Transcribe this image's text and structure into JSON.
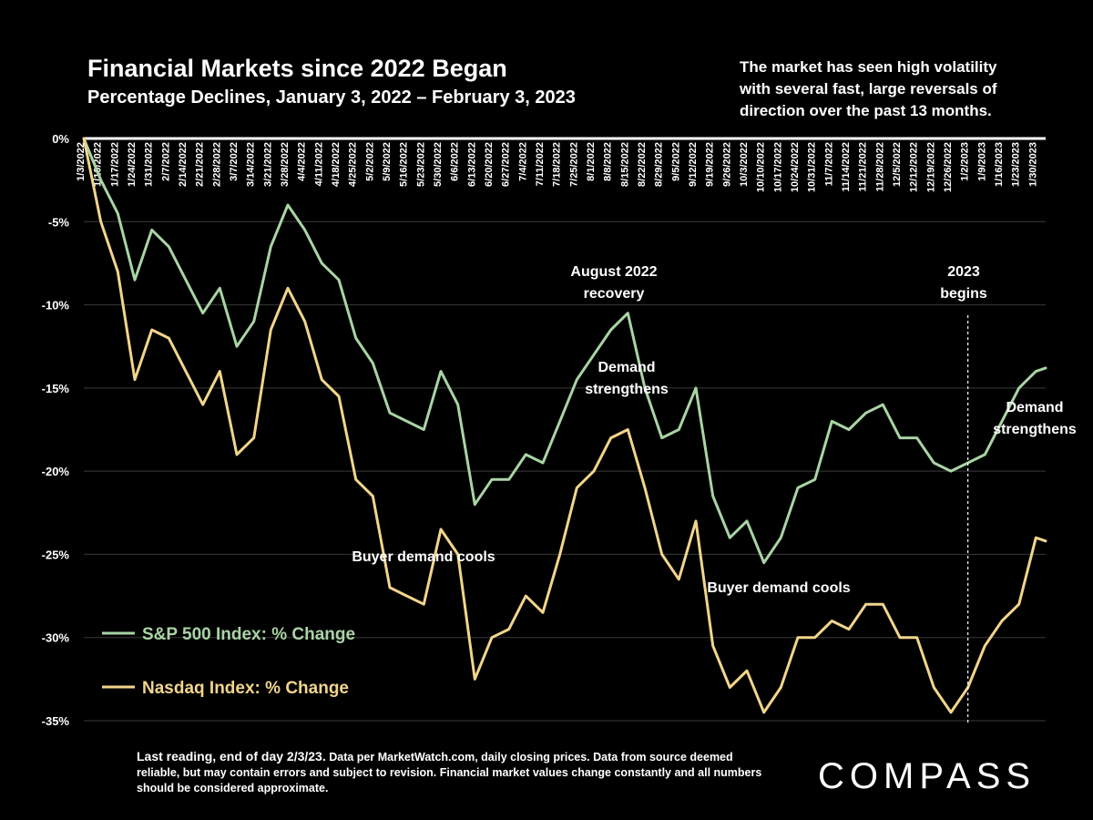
{
  "header": {
    "title": "Financial Markets since 2022 Began",
    "subtitle": "Percentage Declines, January 3, 2022 – February 3, 2023",
    "note_lines": [
      "The market has seen high volatility",
      "with several fast, large reversals of",
      "direction over the past 13 months."
    ]
  },
  "footer": {
    "lead": "Last reading, end of day 2/3/23.",
    "text": "Data per MarketWatch.com, daily closing prices. Data from source deemed reliable, but may contain errors and subject to revision. Financial market values change constantly and all numbers should be considered approximate.",
    "logo": "COMPASS"
  },
  "colors": {
    "background": "#000000",
    "sp500": "#a9d4a4",
    "nasdaq": "#f1d58a",
    "grid": "#3a3a3a",
    "text": "#ffffff"
  },
  "chart_data": {
    "type": "line",
    "ylim": [
      -35,
      0
    ],
    "yticks": [
      0,
      -5,
      -10,
      -15,
      -20,
      -25,
      -30,
      -35
    ],
    "ytick_labels": [
      "0%",
      "-5%",
      "-10%",
      "-15%",
      "-20%",
      "-25%",
      "-30%",
      "-35%"
    ],
    "xlim": [
      "2022-01-03",
      "2023-02-03"
    ],
    "x_tick_labels": [
      "1/3/2022",
      "1/10/2022",
      "1/17/2022",
      "1/24/2022",
      "1/31/2022",
      "2/7/2022",
      "2/14/2022",
      "2/21/2022",
      "2/28/2022",
      "3/7/2022",
      "3/14/2022",
      "3/21/2022",
      "3/28/2022",
      "4/4/2022",
      "4/11/2022",
      "4/18/2022",
      "4/25/2022",
      "5/2/2022",
      "5/9/2022",
      "5/16/2022",
      "5/23/2022",
      "5/30/2022",
      "6/6/2022",
      "6/13/2022",
      "6/20/2022",
      "6/27/2022",
      "7/4/2022",
      "7/11/2022",
      "7/18/2022",
      "7/25/2022",
      "8/1/2022",
      "8/8/2022",
      "8/15/2022",
      "8/22/2022",
      "8/29/2022",
      "9/5/2022",
      "9/12/2022",
      "9/19/2022",
      "9/26/2022",
      "10/3/2022",
      "10/10/2022",
      "10/17/2022",
      "10/24/2022",
      "10/31/2022",
      "11/7/2022",
      "11/14/2022",
      "11/21/2022",
      "11/28/2022",
      "12/5/2022",
      "12/12/2022",
      "12/19/2022",
      "12/26/2022",
      "1/2/2023",
      "1/9/2023",
      "1/16/2023",
      "1/23/2023",
      "1/30/2023"
    ],
    "grid": true,
    "legend_position": "bottom-left",
    "series": [
      {
        "name": "S&P 500 Index: % Change",
        "x": [
          "2022-01-03",
          "2022-01-10",
          "2022-01-17",
          "2022-01-24",
          "2022-01-31",
          "2022-02-07",
          "2022-02-14",
          "2022-02-21",
          "2022-02-28",
          "2022-03-07",
          "2022-03-14",
          "2022-03-21",
          "2022-03-28",
          "2022-04-04",
          "2022-04-11",
          "2022-04-18",
          "2022-04-25",
          "2022-05-02",
          "2022-05-09",
          "2022-05-16",
          "2022-05-23",
          "2022-05-30",
          "2022-06-06",
          "2022-06-13",
          "2022-06-20",
          "2022-06-27",
          "2022-07-04",
          "2022-07-11",
          "2022-07-18",
          "2022-07-25",
          "2022-08-01",
          "2022-08-08",
          "2022-08-15",
          "2022-08-22",
          "2022-08-29",
          "2022-09-05",
          "2022-09-12",
          "2022-09-19",
          "2022-09-26",
          "2022-10-03",
          "2022-10-10",
          "2022-10-17",
          "2022-10-24",
          "2022-10-31",
          "2022-11-07",
          "2022-11-14",
          "2022-11-21",
          "2022-11-28",
          "2022-12-05",
          "2022-12-12",
          "2022-12-19",
          "2022-12-26",
          "2023-01-02",
          "2023-01-09",
          "2023-01-16",
          "2023-01-23",
          "2023-01-30",
          "2023-02-03"
        ],
        "values": [
          0,
          -2.5,
          -4.5,
          -8.5,
          -5.5,
          -6.5,
          -8.5,
          -10.5,
          -9,
          -12.5,
          -11,
          -6.5,
          -4,
          -5.5,
          -7.5,
          -8.5,
          -12,
          -13.5,
          -16.5,
          -17,
          -17.5,
          -14,
          -16,
          -22,
          -20.5,
          -20.5,
          -19,
          -19.5,
          -17,
          -14.5,
          -13,
          -11.5,
          -10.5,
          -15,
          -18,
          -17.5,
          -15,
          -21.5,
          -24,
          -23,
          -25.5,
          -24,
          -21,
          -20.5,
          -17,
          -17.5,
          -16.5,
          -16,
          -18,
          -18,
          -19.5,
          -20,
          -19.5,
          -19,
          -17,
          -15,
          -14,
          -13.8
        ]
      },
      {
        "name": "Nasdaq Index: % Change",
        "x": [
          "2022-01-03",
          "2022-01-10",
          "2022-01-17",
          "2022-01-24",
          "2022-01-31",
          "2022-02-07",
          "2022-02-14",
          "2022-02-21",
          "2022-02-28",
          "2022-03-07",
          "2022-03-14",
          "2022-03-21",
          "2022-03-28",
          "2022-04-04",
          "2022-04-11",
          "2022-04-18",
          "2022-04-25",
          "2022-05-02",
          "2022-05-09",
          "2022-05-16",
          "2022-05-23",
          "2022-05-30",
          "2022-06-06",
          "2022-06-13",
          "2022-06-20",
          "2022-06-27",
          "2022-07-04",
          "2022-07-11",
          "2022-07-18",
          "2022-07-25",
          "2022-08-01",
          "2022-08-08",
          "2022-08-15",
          "2022-08-22",
          "2022-08-29",
          "2022-09-05",
          "2022-09-12",
          "2022-09-19",
          "2022-09-26",
          "2022-10-03",
          "2022-10-10",
          "2022-10-17",
          "2022-10-24",
          "2022-10-31",
          "2022-11-07",
          "2022-11-14",
          "2022-11-21",
          "2022-11-28",
          "2022-12-05",
          "2022-12-12",
          "2022-12-19",
          "2022-12-26",
          "2023-01-02",
          "2023-01-09",
          "2023-01-16",
          "2023-01-23",
          "2023-01-30",
          "2023-02-03"
        ],
        "values": [
          0,
          -5,
          -8,
          -14.5,
          -11.5,
          -12,
          -14,
          -16,
          -14,
          -19,
          -18,
          -11.5,
          -9,
          -11,
          -14.5,
          -15.5,
          -20.5,
          -21.5,
          -27,
          -27.5,
          -28,
          -23.5,
          -25,
          -32.5,
          -30,
          -29.5,
          -27.5,
          -28.5,
          -25,
          -21,
          -20,
          -18,
          -17.5,
          -21,
          -25,
          -26.5,
          -23,
          -30.5,
          -33,
          -32,
          -34.5,
          -33,
          -30,
          -30,
          -29,
          -29.5,
          -28,
          -28,
          -30,
          -30,
          -33,
          -34.5,
          -33,
          -30.5,
          -29,
          -28,
          -24,
          -24.2
        ]
      }
    ],
    "annotations": [
      {
        "lines": [
          "August 2022",
          "recovery"
        ]
      },
      {
        "lines": [
          "Demand",
          "strengthens"
        ]
      },
      {
        "lines": [
          "2023",
          "begins"
        ]
      },
      {
        "lines": [
          "Demand",
          "strengthens"
        ]
      },
      {
        "lines": [
          "Buyer demand cools"
        ]
      },
      {
        "lines": [
          "Buyer demand cools"
        ]
      }
    ]
  }
}
